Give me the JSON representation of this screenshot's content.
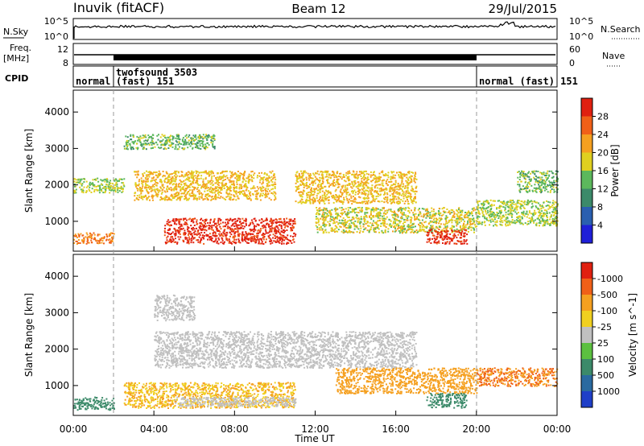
{
  "header": {
    "station": "Inuvik (fitACF)",
    "beam": "Beam 12",
    "date": "29/Jul/2015"
  },
  "strips": {
    "nsky_label": "N.Sky",
    "nsky_top": "10^5",
    "nsky_bottom": "10^0",
    "nsearch_label": "N.Search",
    "nsearch_top": "10^5",
    "nsearch_bottom": "10^0",
    "freq_label1": "Freq.",
    "freq_label2": "[MHz]",
    "freq_top": "12",
    "freq_bottom": "8",
    "nave_label": "Nave",
    "nave_top": "60",
    "nave_bottom": "0",
    "cpid_label": "CPID",
    "cpid_segments": [
      {
        "name": "normal",
        "start": "00:00",
        "end": "01:50"
      },
      {
        "name": "twofsound 3503 (fast) 151",
        "start": "01:50",
        "end": "20:00"
      },
      {
        "name": "normal (fast) 151",
        "start": "20:00",
        "end": "24:00"
      }
    ]
  },
  "chart_data": [
    {
      "type": "heatmap",
      "title": "",
      "xlabel": "Time UT",
      "ylabel": "Slant Range [km]",
      "x_ticks": [
        "00:00",
        "04:00",
        "08:00",
        "12:00",
        "16:00",
        "20:00",
        "00:00"
      ],
      "x_range_hours": [
        0,
        24
      ],
      "y_ticks": [
        1000,
        2000,
        3000,
        4000
      ],
      "ylim": [
        180,
        4600
      ],
      "colorbar": {
        "label": "Power [dB]",
        "ticks": [
          "4",
          "8",
          "12",
          "16",
          "20",
          "24",
          "28"
        ],
        "colors": [
          "#1f1fd8",
          "#2a5fb0",
          "#3c8a6a",
          "#5cb85c",
          "#e0d020",
          "#f5a020",
          "#f06018",
          "#e02010"
        ]
      },
      "features": [
        {
          "t_start": 0.0,
          "t_end": 2.0,
          "r_start": 400,
          "r_end": 700,
          "level_db": 24
        },
        {
          "t_start": 0.0,
          "t_end": 2.5,
          "r_start": 1800,
          "r_end": 2200,
          "level_db": 16
        },
        {
          "t_start": 4.5,
          "t_end": 11.0,
          "r_start": 400,
          "r_end": 1100,
          "level_db": 30
        },
        {
          "t_start": 3.0,
          "t_end": 10.0,
          "r_start": 1600,
          "r_end": 2400,
          "level_db": 20
        },
        {
          "t_start": 2.5,
          "t_end": 7.0,
          "r_start": 3000,
          "r_end": 3400,
          "level_db": 14
        },
        {
          "t_start": 11.0,
          "t_end": 17.0,
          "r_start": 1500,
          "r_end": 2400,
          "level_db": 20
        },
        {
          "t_start": 12.0,
          "t_end": 20.0,
          "r_start": 700,
          "r_end": 1400,
          "level_db": 18
        },
        {
          "t_start": 17.5,
          "t_end": 19.5,
          "r_start": 400,
          "r_end": 800,
          "level_db": 30
        },
        {
          "t_start": 20.0,
          "t_end": 24.0,
          "r_start": 900,
          "r_end": 1600,
          "level_db": 16
        },
        {
          "t_start": 22.0,
          "t_end": 24.0,
          "r_start": 1800,
          "r_end": 2400,
          "level_db": 14
        }
      ]
    },
    {
      "type": "heatmap",
      "title": "",
      "xlabel": "Time UT",
      "ylabel": "Slant Range [km]",
      "x_ticks": [
        "00:00",
        "04:00",
        "08:00",
        "12:00",
        "16:00",
        "20:00",
        "00:00"
      ],
      "x_range_hours": [
        0,
        24
      ],
      "y_ticks": [
        1000,
        2000,
        3000,
        4000
      ],
      "ylim": [
        180,
        4600
      ],
      "colorbar": {
        "label": "Velocity [m s^-1]",
        "ticks": [
          "1000",
          "500",
          "100",
          "25",
          "-25",
          "-100",
          "-500",
          "-1000"
        ],
        "colors": [
          "#1f3fc8",
          "#2a6aa0",
          "#3c8a6a",
          "#5cc040",
          "#c0c0c0",
          "#f0d020",
          "#f5a020",
          "#f06018",
          "#e02010"
        ]
      },
      "features": [
        {
          "t_start": 0.0,
          "t_end": 2.0,
          "r_start": 350,
          "r_end": 700,
          "velocity": -300
        },
        {
          "t_start": 2.5,
          "t_end": 11.0,
          "r_start": 400,
          "r_end": 1100,
          "velocity": 100
        },
        {
          "t_start": 5.0,
          "t_end": 11.0,
          "r_start": 450,
          "r_end": 700,
          "velocity": 0
        },
        {
          "t_start": 4.0,
          "t_end": 17.0,
          "r_start": 1500,
          "r_end": 2500,
          "velocity": 0
        },
        {
          "t_start": 4.0,
          "t_end": 6.0,
          "r_start": 2800,
          "r_end": 3500,
          "velocity": 0
        },
        {
          "t_start": 13.0,
          "t_end": 20.0,
          "r_start": 800,
          "r_end": 1500,
          "velocity": 300
        },
        {
          "t_start": 17.5,
          "t_end": 19.5,
          "r_start": 400,
          "r_end": 800,
          "velocity": -300
        },
        {
          "t_start": 20.0,
          "t_end": 24.0,
          "r_start": 1000,
          "r_end": 1500,
          "velocity": 500
        }
      ]
    }
  ]
}
